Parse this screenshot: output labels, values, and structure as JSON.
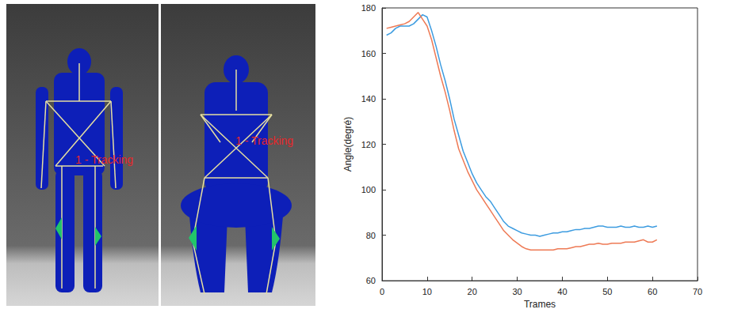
{
  "chart_data": {
    "type": "line",
    "x_label": "Trames",
    "y_label": "Angle(degré)",
    "x": [
      1,
      2,
      3,
      4,
      5,
      6,
      7,
      8,
      9,
      10,
      11,
      12,
      13,
      14,
      15,
      16,
      17,
      18,
      19,
      20,
      21,
      22,
      23,
      24,
      25,
      26,
      27,
      28,
      29,
      30,
      31,
      32,
      33,
      34,
      35,
      36,
      37,
      38,
      39,
      40,
      41,
      42,
      43,
      44,
      45,
      46,
      47,
      48,
      49,
      50,
      51,
      52,
      53,
      54,
      55,
      56,
      57,
      58,
      59,
      60,
      61
    ],
    "series": [
      {
        "color": "#3d9ce0",
        "values": [
          168,
          169,
          171,
          172,
          172,
          172,
          173,
          175,
          177,
          176,
          170,
          163,
          155,
          148,
          140,
          131,
          124,
          117,
          112,
          107,
          103,
          100,
          97,
          95,
          92,
          89,
          86,
          84,
          83,
          82,
          81,
          80.5,
          80,
          80,
          79.5,
          80,
          80.5,
          81,
          81,
          81.5,
          81.5,
          82,
          82.5,
          82.5,
          83,
          83,
          83.5,
          84,
          84,
          83.5,
          83.5,
          83.5,
          84,
          83.5,
          83.5,
          84,
          83.5,
          83.5,
          84,
          83.5,
          84
        ]
      },
      {
        "color": "#ee7a55",
        "values": [
          171,
          171.5,
          172,
          172.5,
          173,
          174,
          176,
          178,
          175,
          172,
          166,
          158,
          150,
          143,
          135,
          126,
          118,
          113,
          108,
          104,
          100,
          97,
          94,
          91,
          88,
          85,
          82,
          80,
          78,
          76.5,
          75,
          74,
          73.5,
          73.5,
          73.5,
          73.5,
          73.5,
          73.5,
          74,
          74,
          74,
          74.5,
          75,
          75,
          75.5,
          76,
          76,
          76.5,
          76,
          76,
          76.5,
          76.5,
          76.5,
          77,
          77,
          77,
          77.5,
          78,
          77,
          77,
          78
        ]
      }
    ],
    "xlim": [
      0,
      70
    ],
    "xticks": [
      0,
      10,
      20,
      30,
      40,
      50,
      60,
      70
    ],
    "ylim": [
      60,
      180
    ],
    "yticks": [
      60,
      80,
      100,
      120,
      140,
      160,
      180
    ],
    "grid": false
  },
  "images": [
    {
      "label": "1 - Tracking"
    },
    {
      "label": "1 - Tracking"
    }
  ]
}
